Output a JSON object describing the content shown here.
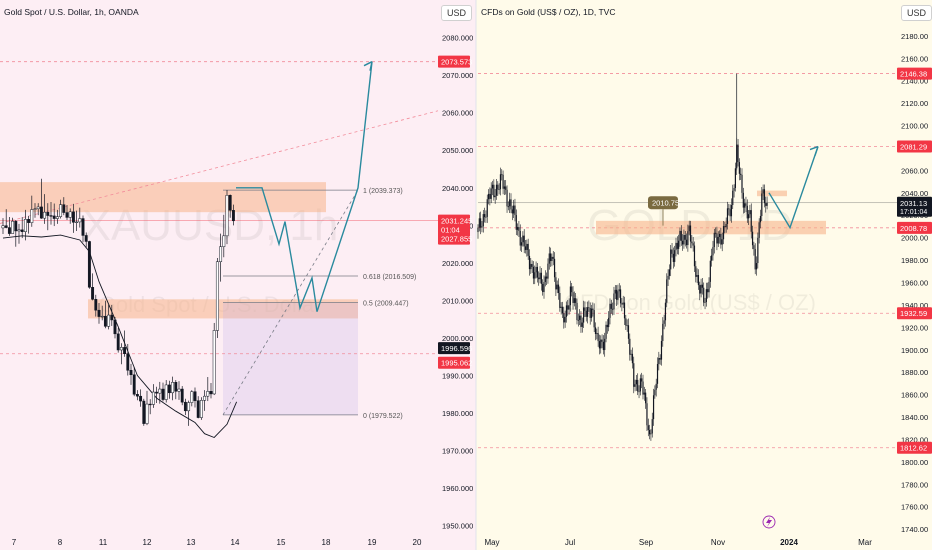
{
  "chart_data": [
    {
      "type": "candlestick",
      "title": "Gold Spot / U.S. Dollar, 1h, OANDA",
      "currency_button": "USD",
      "watermark_symbol": "XAUUSD, 1h",
      "watermark_name": "Gold Spot / U.S. Dollar",
      "ylim": [
        1947,
        2090
      ],
      "y_ticks": [
        "1950.000",
        "1960.000",
        "1970.000",
        "1980.000",
        "1990.000",
        "2000.000",
        "2010.000",
        "2020.000",
        "2030.000",
        "2040.000",
        "2050.000",
        "2060.000",
        "2070.000",
        "2080.000"
      ],
      "x_ticks": [
        "7",
        "8",
        "11",
        "12",
        "13",
        "14",
        "15",
        "18",
        "19",
        "20"
      ],
      "price_labels": {
        "target": "2073.573",
        "last": "2031.245",
        "countdown": "01:04",
        "ask": "2027.855",
        "level_a": "1996.596",
        "level_b": "1995.062"
      },
      "fib_levels": [
        {
          "ratio": "1",
          "price": "2039.373"
        },
        {
          "ratio": "0.618",
          "price": "2016.509"
        },
        {
          "ratio": "0.5",
          "price": "2009.447"
        },
        {
          "ratio": "0",
          "price": "1979.522"
        }
      ],
      "candles": [
        [
          2029.3,
          2031.9,
          2027.7,
          2029.9
        ],
        [
          2029.9,
          2034.3,
          2029.2,
          2029.4
        ],
        [
          2029.4,
          2032.2,
          2027.2,
          2027.8
        ],
        [
          2027.8,
          2032.0,
          2027.8,
          2031.1
        ],
        [
          2031.1,
          2031.4,
          2024.3,
          2028.5
        ],
        [
          2028.5,
          2030.4,
          2025.1,
          2028.8
        ],
        [
          2028.8,
          2032.2,
          2026.6,
          2028.3
        ],
        [
          2028.3,
          2034.1,
          2026.0,
          2031.6
        ],
        [
          2031.6,
          2032.5,
          2027.8,
          2030.7
        ],
        [
          2030.7,
          2037.9,
          2029.6,
          2034.2
        ],
        [
          2034.2,
          2035.9,
          2032.0,
          2034.4
        ],
        [
          2034.4,
          2035.9,
          2032.7,
          2034.9
        ],
        [
          2034.9,
          2042.4,
          2031.7,
          2031.9
        ],
        [
          2031.9,
          2038.3,
          2030.4,
          2033.5
        ],
        [
          2033.5,
          2035.9,
          2028.7,
          2032.6
        ],
        [
          2032.6,
          2036.2,
          2030.2,
          2032.5
        ],
        [
          2032.5,
          2035.8,
          2029.8,
          2031.8
        ],
        [
          2031.8,
          2034.1,
          2030.4,
          2032.3
        ],
        [
          2032.3,
          2036.8,
          2031.8,
          2035.5
        ],
        [
          2035.5,
          2037.5,
          2032.7,
          2033.4
        ],
        [
          2033.4,
          2035.4,
          2031.4,
          2032.1
        ],
        [
          2032.1,
          2034.5,
          2030.4,
          2033.6
        ],
        [
          2033.6,
          2035.7,
          2028.0,
          2030.8
        ],
        [
          2030.8,
          2033.9,
          2028.5,
          2030.9
        ],
        [
          2030.9,
          2034.7,
          2029.4,
          2031.8
        ],
        [
          2031.8,
          2032.6,
          2025.5,
          2027.3
        ],
        [
          2027.3,
          2028.1,
          2023.9,
          2025.7
        ],
        [
          2025.7,
          2025.9,
          2013.1,
          2013.5
        ],
        [
          2013.5,
          2017.2,
          2010.0,
          2010.3
        ],
        [
          2010.3,
          2011.5,
          2005.7,
          2007.4
        ],
        [
          2007.4,
          2009.3,
          2003.8,
          2005.7
        ],
        [
          2005.7,
          2008.6,
          2004.7,
          2005.8
        ],
        [
          2005.8,
          2009.9,
          2002.6,
          2003.1
        ],
        [
          2003.1,
          2008.8,
          2002.3,
          2006.1
        ],
        [
          2006.1,
          2008.8,
          2003.2,
          2004.8
        ],
        [
          2004.8,
          2005.6,
          1999.9,
          2001.1
        ],
        [
          2001.1,
          2002.6,
          1996.1,
          1996.8
        ],
        [
          1996.8,
          1998.6,
          1993.0,
          1997.5
        ],
        [
          1997.5,
          2002.0,
          1995.0,
          1995.8
        ],
        [
          1995.8,
          1998.4,
          1990.0,
          1991.4
        ],
        [
          1991.4,
          1993.1,
          1987.5,
          1990.2
        ],
        [
          1990.2,
          1992.3,
          1984.5,
          1985.0
        ],
        [
          1985.0,
          1986.1,
          1983.4,
          1984.5
        ],
        [
          1984.5,
          1986.3,
          1981.7,
          1983.2
        ],
        [
          1983.2,
          1983.8,
          1976.6,
          1977.2
        ],
        [
          1977.2,
          1985.9,
          1976.8,
          1982.4
        ],
        [
          1982.4,
          1983.7,
          1979.7,
          1982.3
        ],
        [
          1982.3,
          1987.7,
          1981.4,
          1985.6
        ],
        [
          1985.6,
          1987.0,
          1982.7,
          1985.3
        ],
        [
          1985.3,
          1988.3,
          1982.5,
          1986.4
        ],
        [
          1986.4,
          1988.1,
          1983.1,
          1983.6
        ],
        [
          1983.6,
          1988.8,
          1982.8,
          1987.5
        ],
        [
          1987.5,
          1988.6,
          1983.8,
          1985.4
        ],
        [
          1985.4,
          1989.7,
          1983.4,
          1988.2
        ],
        [
          1988.2,
          1988.8,
          1983.7,
          1985.8
        ],
        [
          1985.8,
          1988.5,
          1983.5,
          1986.4
        ],
        [
          1986.4,
          1987.2,
          1982.1,
          1982.9
        ],
        [
          1982.9,
          1983.8,
          1979.5,
          1980.6
        ],
        [
          1980.6,
          1983.3,
          1976.6,
          1982.8
        ],
        [
          1982.8,
          1986.1,
          1981.8,
          1985.7
        ],
        [
          1985.7,
          1986.8,
          1981.5,
          1983.3
        ],
        [
          1983.3,
          1984.5,
          1978.6,
          1978.8
        ],
        [
          1978.8,
          1984.2,
          1978.2,
          1983.4
        ],
        [
          1983.4,
          1986.1,
          1980.6,
          1984.5
        ],
        [
          1984.5,
          1989.6,
          1983.2,
          1985.8
        ],
        [
          1985.8,
          1988.0,
          1983.9,
          1985.1
        ],
        [
          1985.1,
          2004.0,
          1984.8,
          2002.0
        ],
        [
          2002.0,
          2021.3,
          2000.0,
          2020.3
        ],
        [
          2020.3,
          2027.8,
          2015.0,
          2024.3
        ],
        [
          2024.3,
          2032.8,
          2021.5,
          2027.2
        ],
        [
          2027.2,
          2039.4,
          2025.0,
          2038.0
        ],
        [
          2038.0,
          2038.2,
          2032.0,
          2034.0
        ],
        [
          2034.0,
          2035.5,
          2030.0,
          2031.2
        ]
      ],
      "ma_curve": [
        [
          0,
          2026.6
        ],
        [
          6,
          2027.2
        ],
        [
          12,
          2026.9
        ],
        [
          18,
          2027.4
        ],
        [
          24,
          2026.1
        ],
        [
          27,
          2023.0
        ],
        [
          30,
          2015.0
        ],
        [
          36,
          2003.0
        ],
        [
          42,
          1990.0
        ],
        [
          48,
          1984.0
        ],
        [
          54,
          1980.5
        ],
        [
          60,
          1977.5
        ],
        [
          63,
          1974.5
        ],
        [
          66,
          1973.5
        ],
        [
          70,
          1977.0
        ],
        [
          73,
          1983.0
        ]
      ]
    },
    {
      "type": "candlestick",
      "title": "CFDs on Gold (US$ / OZ), 1D, TVC",
      "currency_button": "USD",
      "watermark_symbol": "GOLD, 1D",
      "watermark_name": "CFDs on Gold (US$ / OZ)",
      "ylim": [
        1733,
        2212
      ],
      "y_ticks": [
        "1740.00",
        "1760.00",
        "1780.00",
        "1800.00",
        "1820.00",
        "1840.00",
        "1860.00",
        "1880.00",
        "1900.00",
        "1920.00",
        "1940.00",
        "1960.00",
        "1980.00",
        "2000.00",
        "2020.00",
        "2040.00",
        "2060.00",
        "2080.00",
        "2100.00",
        "2120.00",
        "2140.00",
        "2160.00",
        "2180.00",
        "2200.00"
      ],
      "x_ticks": [
        "May",
        "Jul",
        "Sep",
        "Nov",
        "2024",
        "Mar"
      ],
      "price_labels": {
        "high_line": "2146.38",
        "target": "2081.29",
        "last": "2031.13",
        "countdown": "17:01:04",
        "level_mid": "2008.78",
        "level_low": "1932.59",
        "level_bottom": "1812.62"
      },
      "callout": "2010.75",
      "anchors": [
        [
          0,
          2005
        ],
        [
          10,
          2040
        ],
        [
          18,
          2050
        ],
        [
          24,
          2030
        ],
        [
          34,
          1995
        ],
        [
          44,
          1965
        ],
        [
          50,
          1960
        ],
        [
          56,
          1985
        ],
        [
          64,
          1925
        ],
        [
          70,
          1950
        ],
        [
          78,
          1925
        ],
        [
          86,
          1940
        ],
        [
          90,
          1905
        ],
        [
          96,
          1910
        ],
        [
          104,
          1955
        ],
        [
          112,
          1930
        ],
        [
          118,
          1870
        ],
        [
          124,
          1870
        ],
        [
          130,
          1823
        ],
        [
          138,
          1900
        ],
        [
          146,
          1985
        ],
        [
          152,
          1995
        ],
        [
          160,
          2005
        ],
        [
          166,
          1965
        ],
        [
          172,
          1940
        ],
        [
          178,
          1995
        ],
        [
          186,
          2005
        ],
        [
          192,
          2030
        ],
        [
          196,
          2075
        ],
        [
          200,
          2040
        ],
        [
          206,
          2015
        ],
        [
          210,
          1975
        ],
        [
          215,
          2035
        ],
        [
          219,
          2031.13
        ]
      ]
    }
  ]
}
